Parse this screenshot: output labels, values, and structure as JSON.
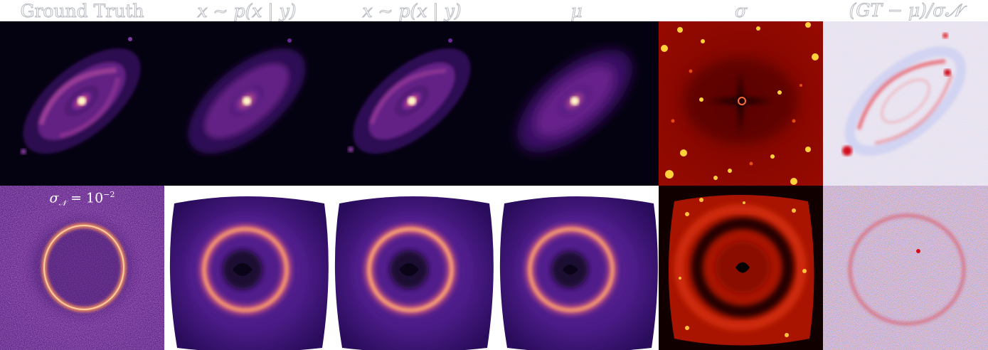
{
  "headers": {
    "col1": "Ground Truth",
    "col2": "x ∼ p(x | y)",
    "col3": "x ∼ p(x | y)",
    "col4": "μ",
    "col5": "σ",
    "col6": "(GT − μ)/σ𝒩"
  },
  "noise_label": {
    "sigma": "σ",
    "sub": "𝒩",
    "eq": " = 10",
    "exp": "−2"
  },
  "colormaps": {
    "magma_dark": "#05020f",
    "magma_purple": "#6a1f8f",
    "magma_orange": "#f48a52",
    "magma_light": "#fff4c0",
    "hot_dark": "#5a0000",
    "hot_red": "#c81200",
    "hot_yellow": "#ffd23a",
    "bwr_white": "#f4f5fb",
    "bwr_red": "#e0141f",
    "bwr_blue": "#3946d8"
  }
}
